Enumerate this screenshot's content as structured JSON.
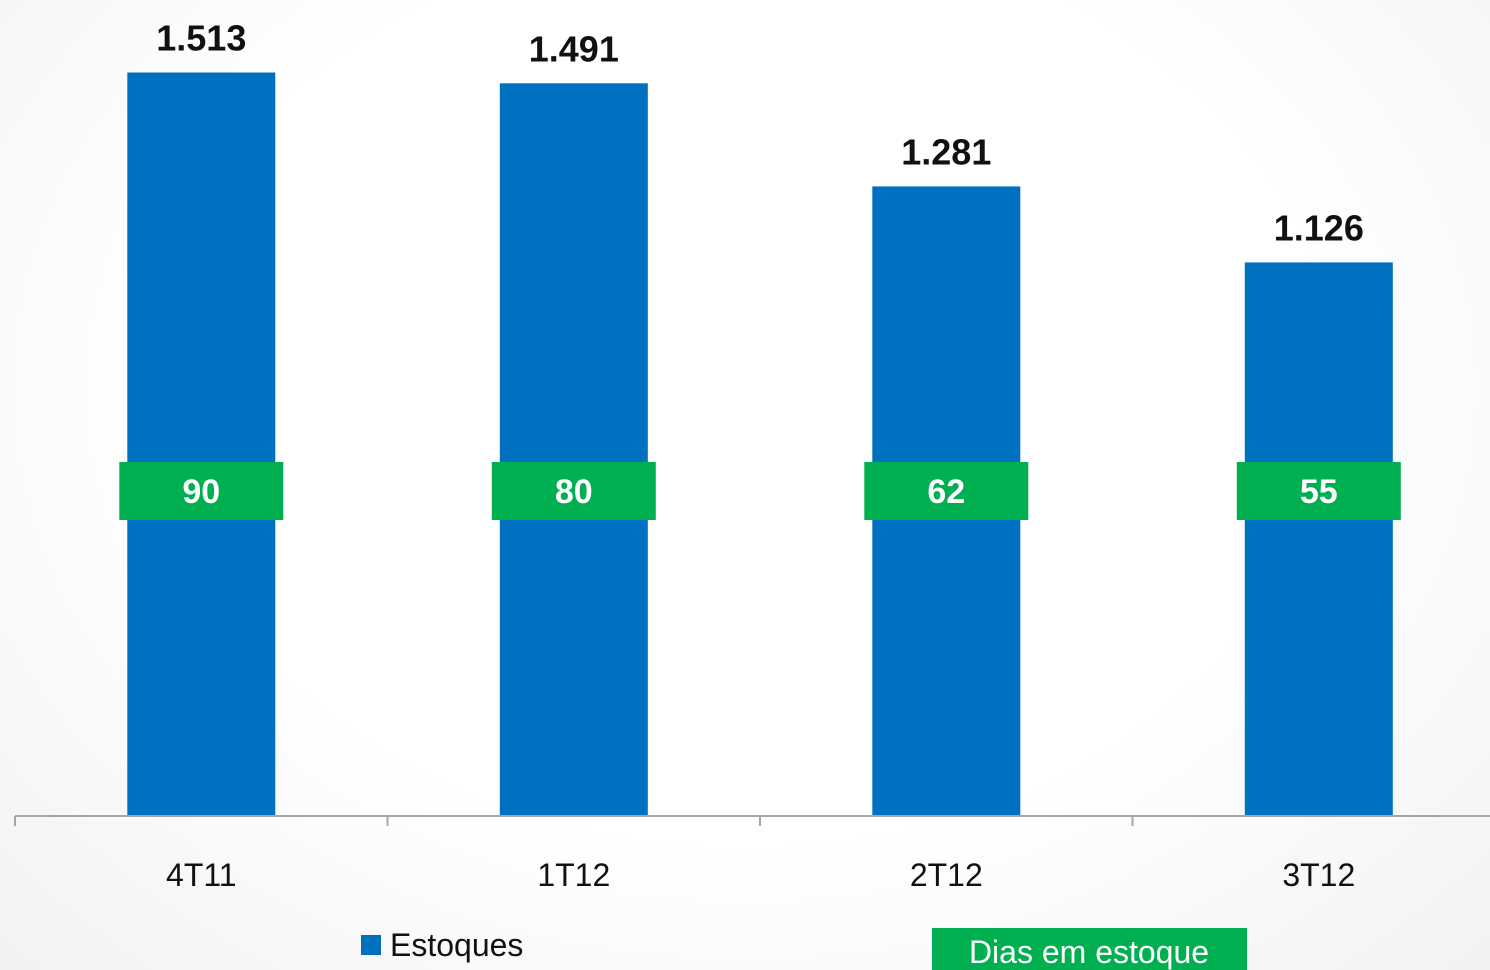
{
  "chart_data": {
    "type": "bar",
    "categories": [
      "4T11",
      "1T12",
      "2T12",
      "3T12"
    ],
    "series": [
      {
        "name": "Estoques",
        "values": [
          1513,
          1491,
          1281,
          1126
        ],
        "labels": [
          "1.513",
          "1.491",
          "1.281",
          "1.126"
        ],
        "color": "#0070c0"
      }
    ],
    "badges": {
      "name": "Dias em estoque",
      "values": [
        90,
        80,
        62,
        55
      ],
      "labels": [
        "90",
        "80",
        "62",
        "55"
      ],
      "color": "#00b050"
    },
    "ylim": [
      0,
      1620
    ],
    "grid": false,
    "legend_position": "bottom"
  }
}
